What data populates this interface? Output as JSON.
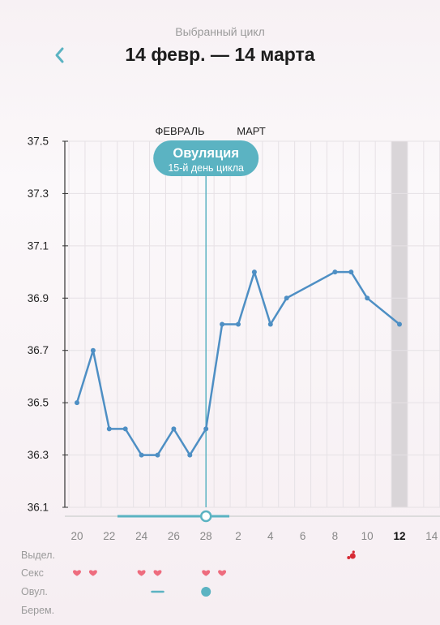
{
  "header": {
    "subtitle": "Выбранный цикл",
    "title": "14 февр. — 14 марта",
    "back_icon": "chevron-left-icon"
  },
  "colors": {
    "accent": "#5bb3c2",
    "line": "#4e8fc4",
    "heart": "#ee6c7e",
    "blood": "#d62b35",
    "grid": "#e6e1e5",
    "today_band": "#d9d5d8"
  },
  "chart_data": {
    "type": "line",
    "month_labels": [
      {
        "label": "ФЕВРАЛЬ",
        "after_day": "20-28"
      },
      {
        "label": "МАРТ",
        "after_day": "1-14"
      }
    ],
    "x_labels": [
      "20",
      "22",
      "24",
      "26",
      "28",
      "2",
      "4",
      "6",
      "8",
      "10",
      "12",
      "14"
    ],
    "highlight_x_label": "12",
    "y_ticks": [
      "37.5",
      "37.3",
      "37.1",
      "36.9",
      "36.7",
      "36.5",
      "36.3",
      "36.1"
    ],
    "ylim": [
      36.1,
      37.5
    ],
    "days": [
      "20",
      "21",
      "22",
      "23",
      "24",
      "25",
      "26",
      "27",
      "28",
      "1",
      "2",
      "3",
      "4",
      "5",
      "6",
      "7",
      "8",
      "9",
      "10",
      "11",
      "12",
      "13",
      "14"
    ],
    "values": [
      36.5,
      36.7,
      36.4,
      36.4,
      36.3,
      36.3,
      36.4,
      36.3,
      36.4,
      36.8,
      36.8,
      37.0,
      36.8,
      36.9,
      null,
      null,
      37.0,
      37.0,
      36.9,
      null,
      36.8,
      null,
      null
    ],
    "ovulation_day_index": 8,
    "today_index": 20,
    "ovulation_badge": {
      "title": "Овуляция",
      "subtitle": "15-й день цикла"
    }
  },
  "rows": [
    {
      "label": "Выдел.",
      "icon": "blood-drop-icon",
      "day_indices": [
        17
      ]
    },
    {
      "label": "Секс",
      "icon": "heart-icon",
      "day_indices": [
        0,
        1,
        4,
        5,
        8,
        9
      ]
    },
    {
      "label": "Овул.",
      "icon": "ovulation-marker-icon",
      "dash_indices": [
        5
      ],
      "dot_indices": [
        8
      ]
    },
    {
      "label": "Берем.",
      "icon": "",
      "day_indices": []
    }
  ]
}
